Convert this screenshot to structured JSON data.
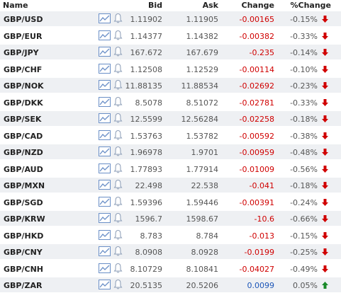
{
  "header": {
    "name": "Name",
    "bid": "Bid",
    "ask": "Ask",
    "change": "Change",
    "pct_change": "%Change"
  },
  "colors": {
    "down": "#d00000",
    "up": "#1a8a2a",
    "chart_icon": "#6a8fc7",
    "bell_icon": "#8a9bb5"
  },
  "rows": [
    {
      "pair": "GBP/USD",
      "bid": "1.11902",
      "ask": "1.11905",
      "change": "-0.00165",
      "pct": "-0.15%",
      "dir": "down"
    },
    {
      "pair": "GBP/EUR",
      "bid": "1.14377",
      "ask": "1.14382",
      "change": "-0.00382",
      "pct": "-0.33%",
      "dir": "down"
    },
    {
      "pair": "GBP/JPY",
      "bid": "167.672",
      "ask": "167.679",
      "change": "-0.235",
      "pct": "-0.14%",
      "dir": "down"
    },
    {
      "pair": "GBP/CHF",
      "bid": "1.12508",
      "ask": "1.12529",
      "change": "-0.00114",
      "pct": "-0.10%",
      "dir": "down"
    },
    {
      "pair": "GBP/NOK",
      "bid": "11.88135",
      "ask": "11.88534",
      "change": "-0.02692",
      "pct": "-0.23%",
      "dir": "down"
    },
    {
      "pair": "GBP/DKK",
      "bid": "8.5078",
      "ask": "8.51072",
      "change": "-0.02781",
      "pct": "-0.33%",
      "dir": "down"
    },
    {
      "pair": "GBP/SEK",
      "bid": "12.5599",
      "ask": "12.56284",
      "change": "-0.02258",
      "pct": "-0.18%",
      "dir": "down"
    },
    {
      "pair": "GBP/CAD",
      "bid": "1.53763",
      "ask": "1.53782",
      "change": "-0.00592",
      "pct": "-0.38%",
      "dir": "down"
    },
    {
      "pair": "GBP/NZD",
      "bid": "1.96978",
      "ask": "1.9701",
      "change": "-0.00959",
      "pct": "-0.48%",
      "dir": "down"
    },
    {
      "pair": "GBP/AUD",
      "bid": "1.77893",
      "ask": "1.77914",
      "change": "-0.01009",
      "pct": "-0.56%",
      "dir": "down"
    },
    {
      "pair": "GBP/MXN",
      "bid": "22.498",
      "ask": "22.538",
      "change": "-0.041",
      "pct": "-0.18%",
      "dir": "down"
    },
    {
      "pair": "GBP/SGD",
      "bid": "1.59396",
      "ask": "1.59446",
      "change": "-0.00391",
      "pct": "-0.24%",
      "dir": "down"
    },
    {
      "pair": "GBP/KRW",
      "bid": "1596.7",
      "ask": "1598.67",
      "change": "-10.6",
      "pct": "-0.66%",
      "dir": "down"
    },
    {
      "pair": "GBP/HKD",
      "bid": "8.783",
      "ask": "8.784",
      "change": "-0.013",
      "pct": "-0.15%",
      "dir": "down"
    },
    {
      "pair": "GBP/CNY",
      "bid": "8.0908",
      "ask": "8.0928",
      "change": "-0.0199",
      "pct": "-0.25%",
      "dir": "down"
    },
    {
      "pair": "GBP/CNH",
      "bid": "8.10729",
      "ask": "8.10841",
      "change": "-0.04027",
      "pct": "-0.49%",
      "dir": "down"
    },
    {
      "pair": "GBP/ZAR",
      "bid": "20.5135",
      "ask": "20.5206",
      "change": "0.0099",
      "pct": "0.05%",
      "dir": "up"
    }
  ]
}
